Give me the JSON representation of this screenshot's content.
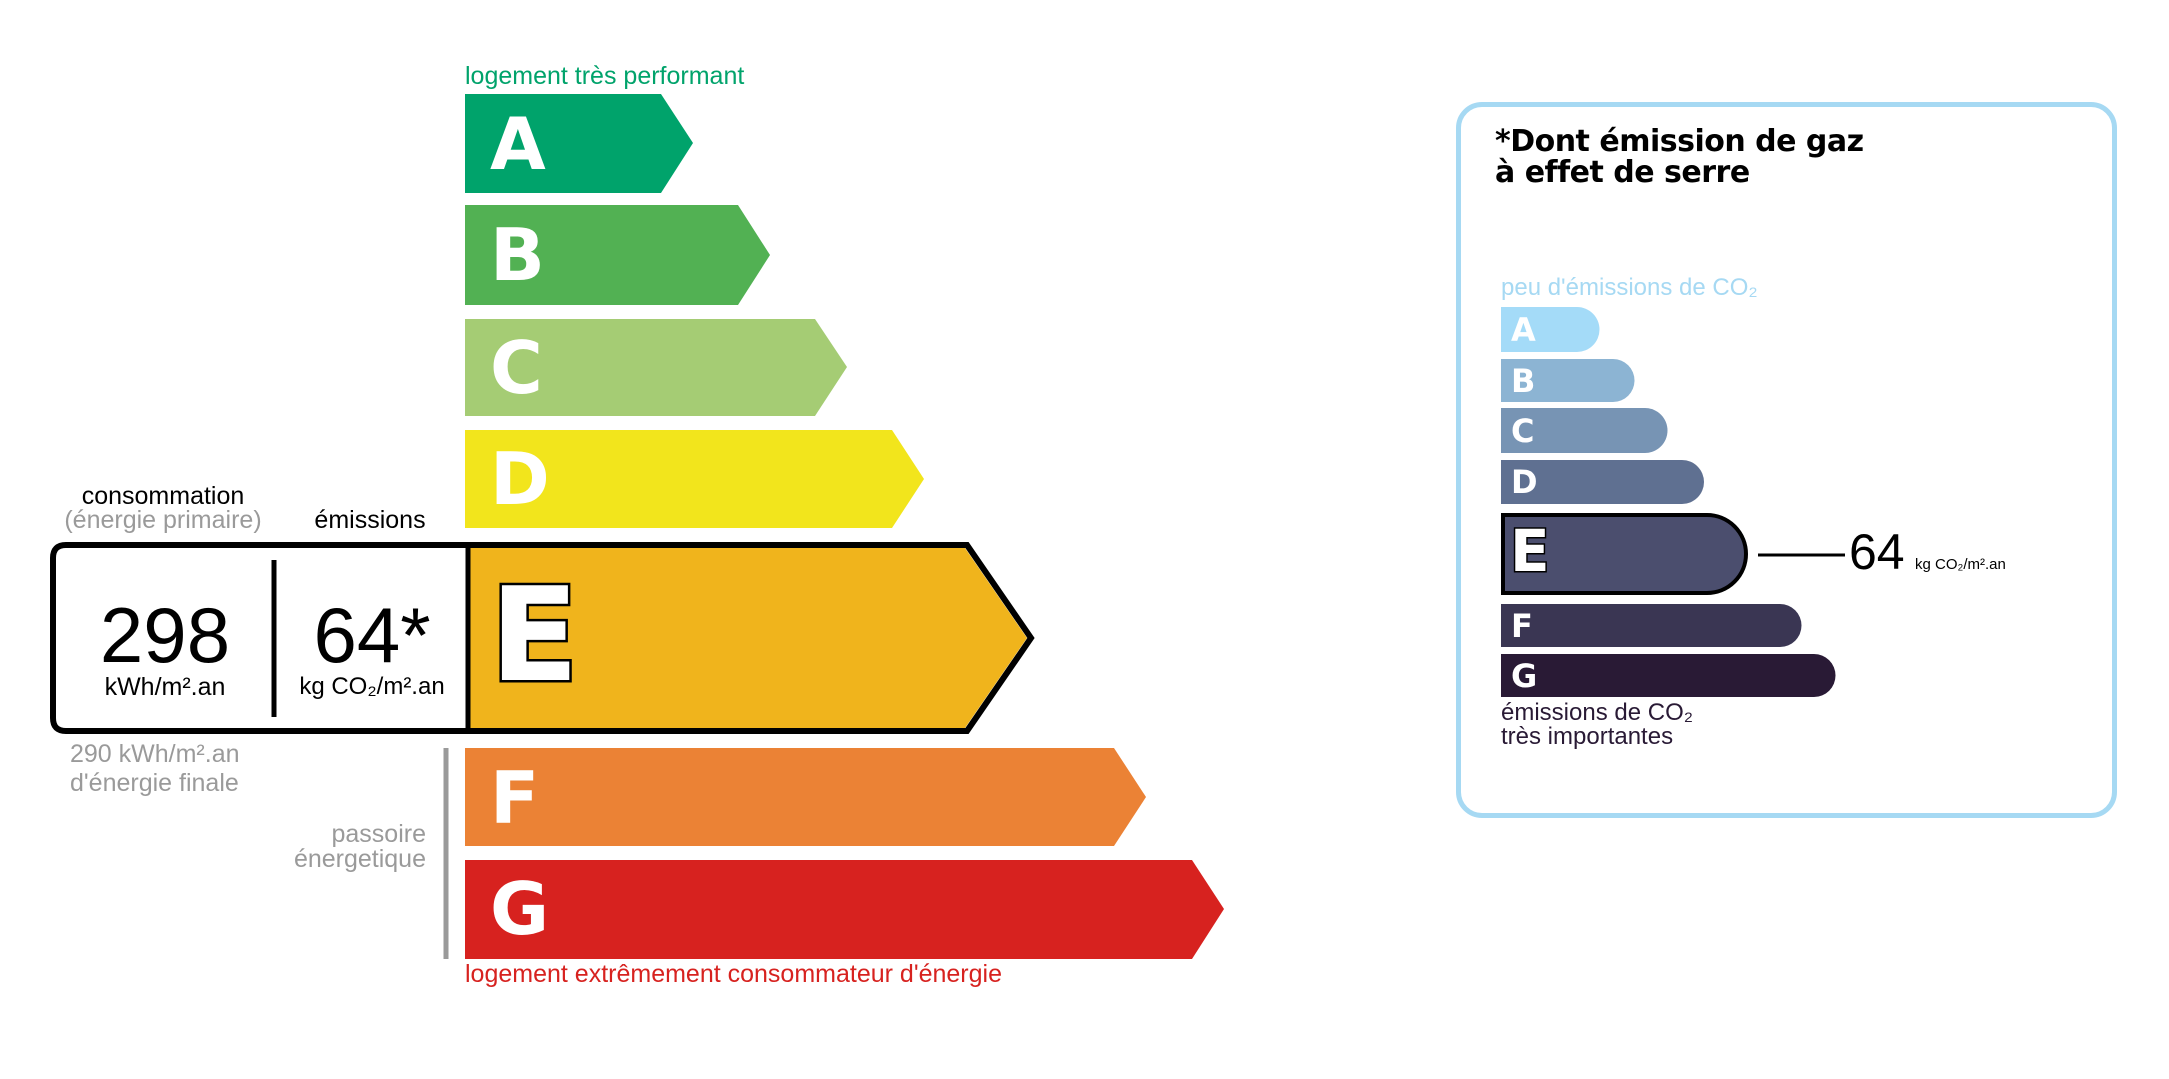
{
  "energy_label": {
    "top_label": "logement très performant",
    "bottom_label": "logement extrêmement consommateur d'énergie",
    "classes": [
      {
        "letter": "A",
        "color": "#00a36b"
      },
      {
        "letter": "B",
        "color": "#52b153"
      },
      {
        "letter": "C",
        "color": "#a5cc74"
      },
      {
        "letter": "D",
        "color": "#f2e51c"
      },
      {
        "letter": "E",
        "color": "#f0b41c"
      },
      {
        "letter": "F",
        "color": "#eb8235"
      },
      {
        "letter": "G",
        "color": "#d7221f"
      }
    ],
    "current_class": "E",
    "consumption_header": "consommation",
    "consumption_subheader": "(énergie primaire)",
    "emissions_header": "émissions",
    "consumption_value": "298",
    "consumption_unit": "kWh/m².an",
    "emissions_value": "64*",
    "emissions_unit": "kg CO₂/m².an",
    "final_energy_value": "290 kWh/m².an",
    "final_energy_label": "d'énergie finale",
    "passoire_line1": "passoire",
    "passoire_line2": "énergetique",
    "top_color": "#00a36b",
    "bottom_color": "#d7221f"
  },
  "co2_label": {
    "title_line1": "*Dont émission de gaz",
    "title_line2": "à effet de serre",
    "top_label": "peu d'émissions de CO₂",
    "bottom_line1": "émissions de CO₂",
    "bottom_line2": "très importantes",
    "classes": [
      {
        "letter": "A",
        "color": "#a4dbf8"
      },
      {
        "letter": "B",
        "color": "#8cb4d3"
      },
      {
        "letter": "C",
        "color": "#7794b4"
      },
      {
        "letter": "D",
        "color": "#5f7091"
      },
      {
        "letter": "E",
        "color": "#4b4e6e"
      },
      {
        "letter": "F",
        "color": "#3a3653"
      },
      {
        "letter": "G",
        "color": "#291a35"
      }
    ],
    "current_class": "E",
    "value": "64",
    "unit": "kg CO₂/m².an",
    "border_color": "#a6d9f3"
  }
}
